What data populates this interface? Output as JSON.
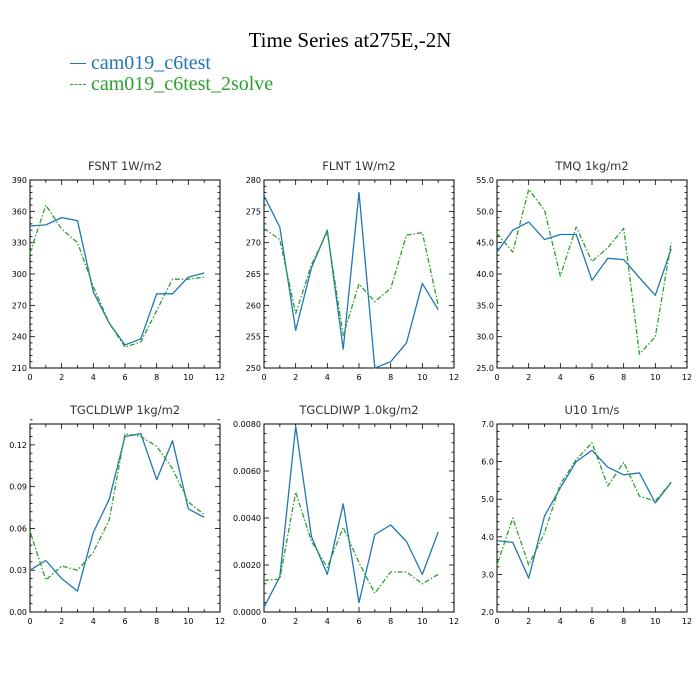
{
  "figure": {
    "title": "Time Series at275E,-2N",
    "legend": [
      {
        "name": "cam019_c6test",
        "color": "#1f77b4",
        "dash": "solid"
      },
      {
        "name": "cam019_c6test_2solve",
        "color": "#2ca02c",
        "dash": "dashed"
      }
    ]
  },
  "chart_data": [
    {
      "type": "line",
      "title": "FSNT   1W/m2",
      "x": [
        0,
        1,
        2,
        3,
        4,
        5,
        6,
        7,
        8,
        9,
        10,
        11
      ],
      "xlim": [
        0,
        12
      ],
      "xticks": [
        0,
        2,
        4,
        6,
        8,
        10,
        12
      ],
      "ylim": [
        210,
        390
      ],
      "yticks": [
        210,
        240,
        270,
        300,
        330,
        360,
        390
      ],
      "ytick_labels": [
        "210",
        "240",
        "270",
        "300",
        "330",
        "360",
        "390"
      ],
      "series": [
        {
          "name": "cam019_c6test",
          "values": [
            346,
            347,
            354,
            351,
            283,
            253,
            232,
            238,
            281,
            281,
            297,
            301
          ]
        },
        {
          "name": "cam019_c6test_2solve",
          "values": [
            320,
            366,
            343,
            330,
            288,
            253,
            230,
            235,
            265,
            295,
            295,
            297
          ]
        }
      ]
    },
    {
      "type": "line",
      "title": "FLNT   1W/m2",
      "x": [
        0,
        1,
        2,
        3,
        4,
        5,
        6,
        7,
        8,
        9,
        10,
        11
      ],
      "xlim": [
        0,
        12
      ],
      "xticks": [
        0,
        2,
        4,
        6,
        8,
        10,
        12
      ],
      "ylim": [
        250,
        280
      ],
      "yticks": [
        250,
        255,
        260,
        265,
        270,
        275,
        280
      ],
      "ytick_labels": [
        "250",
        "255",
        "260",
        "265",
        "270",
        "275",
        "280"
      ],
      "series": [
        {
          "name": "cam019_c6test",
          "values": [
            277.5,
            272.5,
            256,
            266,
            272,
            253,
            278,
            250,
            251,
            254,
            263.5,
            259.3
          ]
        },
        {
          "name": "cam019_c6test_2solve",
          "values": [
            272.3,
            270.5,
            258.7,
            266.5,
            271.7,
            255.2,
            263.4,
            260.6,
            262.7,
            271.2,
            271.6,
            260
          ]
        }
      ]
    },
    {
      "type": "line",
      "title": "TMQ   1kg/m2",
      "x": [
        0,
        1,
        2,
        3,
        4,
        5,
        6,
        7,
        8,
        9,
        10,
        11
      ],
      "xlim": [
        0,
        12
      ],
      "xticks": [
        0,
        2,
        4,
        6,
        8,
        10,
        12
      ],
      "ylim": [
        25,
        55
      ],
      "yticks": [
        25,
        30,
        35,
        40,
        45,
        50,
        55
      ],
      "ytick_labels": [
        "25.0",
        "30.0",
        "35.0",
        "40.0",
        "45.0",
        "50.0",
        "55.0"
      ],
      "series": [
        {
          "name": "cam019_c6test",
          "values": [
            43.5,
            47,
            48.3,
            45.5,
            46.3,
            46.3,
            39,
            42.5,
            42.3,
            39.4,
            36.6,
            44
          ]
        },
        {
          "name": "cam019_c6test_2solve",
          "values": [
            46.5,
            43.5,
            53.5,
            50.2,
            39.7,
            47.5,
            42,
            44.2,
            47.3,
            27.2,
            30,
            45
          ]
        }
      ]
    },
    {
      "type": "line",
      "title": "TGCLDLWP   1kg/m2",
      "x": [
        0,
        1,
        2,
        3,
        4,
        5,
        6,
        7,
        8,
        9,
        10,
        11
      ],
      "xlim": [
        0,
        12
      ],
      "xticks": [
        0,
        2,
        4,
        6,
        8,
        10,
        12
      ],
      "ylim": [
        0,
        0.135
      ],
      "yticks": [
        0,
        0.03,
        0.06,
        0.09,
        0.12
      ],
      "ytick_labels": [
        "0.00",
        "0.03",
        "0.06",
        "0.09",
        "0.12"
      ],
      "series": [
        {
          "name": "cam019_c6test",
          "values": [
            0.03,
            0.037,
            0.024,
            0.015,
            0.057,
            0.081,
            0.126,
            0.128,
            0.095,
            0.123,
            0.074,
            0.068
          ]
        },
        {
          "name": "cam019_c6test_2solve",
          "values": [
            0.058,
            0.023,
            0.033,
            0.03,
            0.043,
            0.066,
            0.128,
            0.126,
            0.119,
            0.103,
            0.079,
            0.07
          ]
        }
      ]
    },
    {
      "type": "line",
      "title": "TGCLDIWP   1.0kg/m2",
      "x": [
        0,
        1,
        2,
        3,
        4,
        5,
        6,
        7,
        8,
        9,
        10,
        11
      ],
      "xlim": [
        0,
        12
      ],
      "xticks": [
        0,
        2,
        4,
        6,
        8,
        10,
        12
      ],
      "ylim": [
        0,
        0.008
      ],
      "yticks": [
        0,
        0.002,
        0.004,
        0.006,
        0.008
      ],
      "ytick_labels": [
        "0.0000",
        "0.0020",
        "0.0040",
        "0.0060",
        "0.0080"
      ],
      "series": [
        {
          "name": "cam019_c6test",
          "values": [
            0.0002,
            0.0015,
            0.0079,
            0.0032,
            0.0016,
            0.0046,
            0.0004,
            0.0033,
            0.0037,
            0.003,
            0.0016,
            0.0034
          ]
        },
        {
          "name": "cam019_c6test_2solve",
          "values": [
            0.00135,
            0.0014,
            0.0051,
            0.003,
            0.0019,
            0.0036,
            0.0021,
            0.0008,
            0.0017,
            0.0017,
            0.0012,
            0.0016
          ]
        }
      ]
    },
    {
      "type": "line",
      "title": "U10   1m/s",
      "x": [
        0,
        1,
        2,
        3,
        4,
        5,
        6,
        7,
        8,
        9,
        10,
        11
      ],
      "xlim": [
        0,
        12
      ],
      "xticks": [
        0,
        2,
        4,
        6,
        8,
        10,
        12
      ],
      "ylim": [
        2,
        7
      ],
      "yticks": [
        2,
        3,
        4,
        5,
        6,
        7
      ],
      "ytick_labels": [
        "2.0",
        "3.0",
        "4.0",
        "5.0",
        "6.0",
        "7.0"
      ],
      "series": [
        {
          "name": "cam019_c6test",
          "values": [
            3.9,
            3.85,
            2.9,
            4.55,
            5.3,
            6.0,
            6.3,
            5.85,
            5.65,
            5.7,
            4.9,
            5.45
          ]
        },
        {
          "name": "cam019_c6test_2solve",
          "values": [
            3.25,
            4.5,
            3.25,
            4.1,
            5.4,
            6.05,
            6.5,
            5.35,
            5.98,
            5.08,
            4.95,
            5.45
          ]
        }
      ]
    }
  ]
}
